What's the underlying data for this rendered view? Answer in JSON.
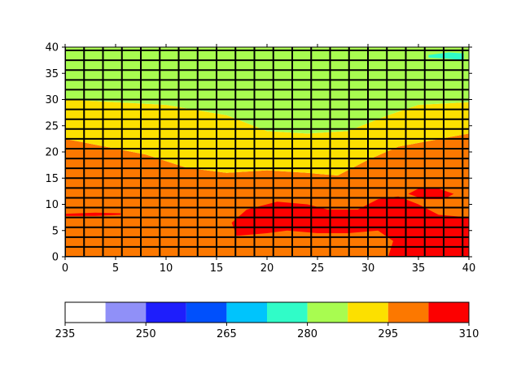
{
  "chart_data": {
    "type": "heatmap",
    "title": "",
    "xlabel": "",
    "ylabel": "",
    "xlim": [
      0,
      40
    ],
    "ylim": [
      0,
      40
    ],
    "x_ticks": [
      "0",
      "5",
      "10",
      "15",
      "20",
      "25",
      "30",
      "35",
      "40"
    ],
    "y_ticks": [
      "0",
      "5",
      "10",
      "15",
      "20",
      "25",
      "30",
      "35",
      "40"
    ],
    "grid": true,
    "grid_spacing": [
      1.875,
      1.875
    ],
    "colorbar": {
      "orientation": "horizontal",
      "placement": "bottom",
      "levels": [
        235,
        242.5,
        250,
        257.5,
        265,
        272.5,
        280,
        287.5,
        295,
        302.5,
        310
      ],
      "tick_values": [
        235,
        250,
        265,
        280,
        295,
        310
      ],
      "tick_labels": [
        "235",
        "250",
        "265",
        "280",
        "295",
        "310"
      ],
      "colors": [
        "#ffffff",
        "#9090f8",
        "#1e1efc",
        "#0050fc",
        "#00c4fc",
        "#30fcc8",
        "#a8fc50",
        "#fce000",
        "#fc7800",
        "#fc0000"
      ]
    },
    "regions": [
      {
        "level_range": [
          295,
          302.5
        ],
        "color": "#fc7800",
        "outline": [
          [
            0,
            0
          ],
          [
            40,
            0
          ],
          [
            40,
            23.5
          ],
          [
            33,
            21
          ],
          [
            30,
            18.5
          ],
          [
            27,
            15.5
          ],
          [
            24,
            16
          ],
          [
            20,
            16.5
          ],
          [
            16,
            16
          ],
          [
            12,
            17
          ],
          [
            8,
            19.5
          ],
          [
            4,
            21
          ],
          [
            0,
            22.5
          ]
        ]
      },
      {
        "level_range": [
          287.5,
          295
        ],
        "color": "#fce000",
        "outline": [
          [
            0,
            22.5
          ],
          [
            4,
            21
          ],
          [
            8,
            19.5
          ],
          [
            12,
            17
          ],
          [
            16,
            16
          ],
          [
            20,
            16.5
          ],
          [
            24,
            16
          ],
          [
            27,
            15.5
          ],
          [
            30,
            18.5
          ],
          [
            33,
            21
          ],
          [
            40,
            23.5
          ],
          [
            40,
            29.5
          ],
          [
            35,
            29
          ],
          [
            32,
            27
          ],
          [
            28,
            24
          ],
          [
            24,
            23.5
          ],
          [
            20,
            24
          ],
          [
            16,
            27
          ],
          [
            10,
            29
          ],
          [
            5,
            29.5
          ],
          [
            0,
            30
          ]
        ]
      },
      {
        "level_range": [
          280,
          287.5
        ],
        "color": "#a8fc50",
        "outline": [
          [
            0,
            30
          ],
          [
            5,
            29.5
          ],
          [
            10,
            29
          ],
          [
            16,
            27
          ],
          [
            20,
            24
          ],
          [
            24,
            23.5
          ],
          [
            28,
            24
          ],
          [
            32,
            27
          ],
          [
            35,
            29
          ],
          [
            40,
            29.5
          ],
          [
            40,
            40
          ],
          [
            0,
            40
          ]
        ]
      },
      {
        "level_range": [
          302.5,
          310
        ],
        "color": "#fc0000",
        "outline": [
          [
            16.5,
            6.5
          ],
          [
            18,
            9
          ],
          [
            21,
            10.5
          ],
          [
            24,
            10
          ],
          [
            26,
            9
          ],
          [
            29,
            9
          ],
          [
            31,
            11
          ],
          [
            33,
            11.5
          ],
          [
            35,
            10
          ],
          [
            37,
            8
          ],
          [
            40,
            7.5
          ],
          [
            40,
            0
          ],
          [
            32,
            0
          ],
          [
            32.5,
            3
          ],
          [
            31,
            5
          ],
          [
            28,
            4.5
          ],
          [
            25,
            4.5
          ],
          [
            22,
            5
          ],
          [
            20,
            4.5
          ],
          [
            17,
            4
          ]
        ]
      },
      {
        "level_range": [
          302.5,
          310
        ],
        "color": "#fc0000",
        "outline": [
          [
            34,
            12
          ],
          [
            35,
            13
          ],
          [
            37,
            13
          ],
          [
            38.5,
            12
          ],
          [
            37.5,
            11
          ],
          [
            35.5,
            11
          ]
        ]
      },
      {
        "level_range": [
          302.5,
          310
        ],
        "color": "#fc0000",
        "outline": [
          [
            0,
            8.2
          ],
          [
            3,
            8.4
          ],
          [
            5.5,
            8.3
          ],
          [
            5.5,
            8.0
          ],
          [
            3,
            7.8
          ],
          [
            0,
            7.8
          ]
        ]
      },
      {
        "level_range": [
          287.5,
          295
        ],
        "color": "#fce000",
        "outline": [
          [
            14.5,
            18.5
          ],
          [
            16,
            19.5
          ],
          [
            17.5,
            19
          ],
          [
            17.5,
            17.5
          ],
          [
            16,
            17
          ],
          [
            14.8,
            17.5
          ]
        ]
      },
      {
        "level_range": [
          272.5,
          280
        ],
        "color": "#30fcc8",
        "outline": [
          [
            36,
            38.5
          ],
          [
            38,
            39
          ],
          [
            39.5,
            38.8
          ],
          [
            39.5,
            37.5
          ],
          [
            38,
            37.8
          ],
          [
            36,
            38
          ]
        ]
      }
    ]
  }
}
